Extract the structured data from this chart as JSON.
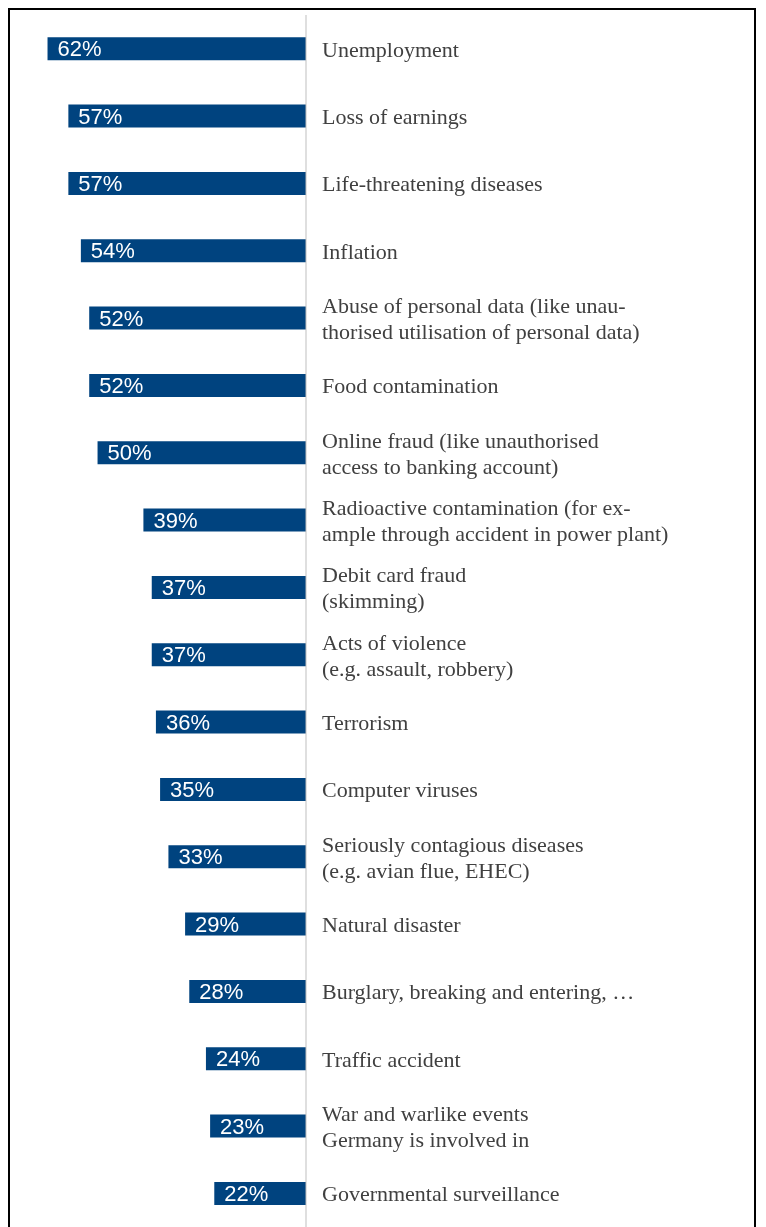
{
  "chart_data": {
    "type": "bar",
    "orientation": "horizontal",
    "categories": [
      "Unemployment",
      "Loss of earnings",
      "Life-threatening diseases",
      "Inflation",
      "Abuse of personal data (like unau-\nthorised utilisation of personal data)",
      "Food contamination",
      "Online fraud (like unauthorised\naccess to banking account)",
      "Radioactive contamination (for ex-\nample through accident in power plant)",
      "Debit card fraud\n(skimming)",
      "Acts of violence\n(e.g. assault, robbery)",
      "Terrorism",
      "Computer viruses",
      "Seriously contagious diseases\n(e.g. avian flue, EHEC)",
      "Natural disaster",
      "Burglary, breaking and entering, …",
      "Traffic accident",
      "War and warlike events\nGermany is involved in",
      "Governmental surveillance"
    ],
    "values": [
      62,
      57,
      57,
      54,
      52,
      52,
      50,
      39,
      37,
      37,
      36,
      35,
      33,
      29,
      28,
      24,
      23,
      22
    ],
    "value_labels": [
      "62%",
      "57%",
      "57%",
      "54%",
      "52%",
      "52%",
      "50%",
      "39%",
      "37%",
      "37%",
      "36%",
      "35%",
      "33%",
      "29%",
      "28%",
      "24%",
      "23%",
      "22%"
    ],
    "color": "#00437f",
    "xlim": [
      71,
      0
    ],
    "grid": false,
    "legend": false
  }
}
